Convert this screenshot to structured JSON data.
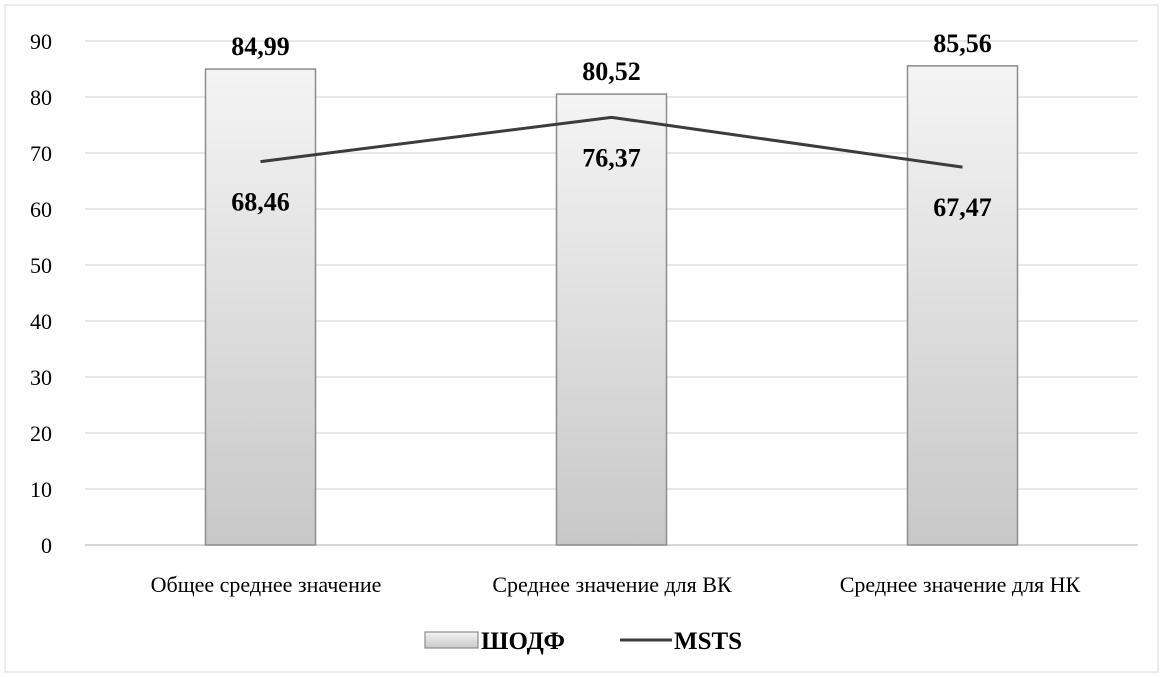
{
  "chart_data": {
    "type": "bar",
    "categories": [
      "Общее среднее значение",
      "Среднее значение для ВК",
      "Среднее значение для НК"
    ],
    "series": [
      {
        "name": "ШОДФ",
        "type": "bar",
        "values": [
          84.99,
          80.52,
          85.56
        ],
        "labels": [
          "84,99",
          "80,52",
          "85,56"
        ]
      },
      {
        "name": "MSTS",
        "type": "line",
        "values": [
          68.46,
          76.37,
          67.47
        ],
        "labels": [
          "68,46",
          "76,37",
          "67,47"
        ]
      }
    ],
    "yticks": [
      "0",
      "10",
      "20",
      "30",
      "40",
      "50",
      "60",
      "70",
      "80",
      "90"
    ],
    "ylim": [
      0,
      90
    ],
    "grid": true,
    "legend_position": "bottom",
    "colors": {
      "bar_fill_top": "#f4f4f4",
      "bar_fill_bottom": "#c8c8c8",
      "bar_stroke": "#8c8c8c",
      "line": "#3c3c3c",
      "grid": "#d9d9d9"
    }
  }
}
